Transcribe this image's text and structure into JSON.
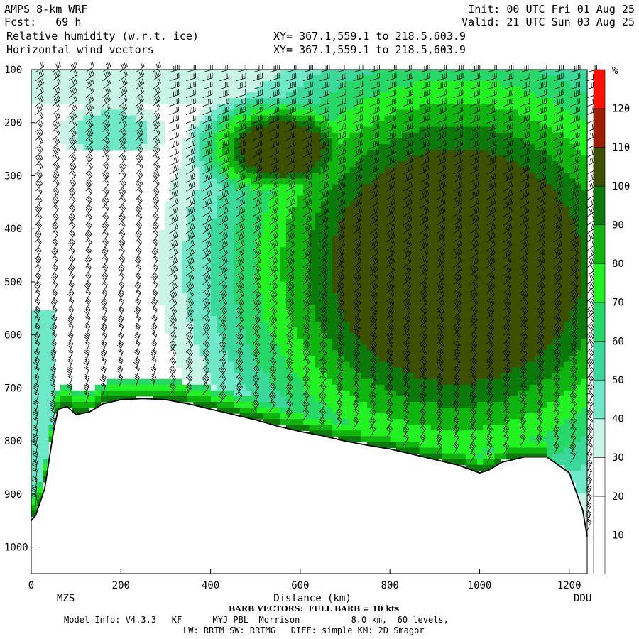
{
  "header": {
    "model": "AMPS 8-km WRF",
    "fcst": "Fcst:   69 h",
    "field1": "Relative humidity (w.r.t. ice)",
    "field2": "Horizontal wind vectors",
    "init": "Init: 00 UTC Fri 01 Aug 25",
    "valid": "Valid: 21 UTC Sun 03 Aug 25",
    "xy1": "XY= 367.1,559.1 to 218.5,603.9",
    "xy2": "XY= 367.1,559.1 to 218.5,603.9"
  },
  "footer": {
    "barb_note": "BARB VECTORS:  FULL BARB = 10 kts",
    "model_info": "Model Info: V4.3.3   KF      MYJ PBL  Morrison          8.0 km,  60 levels,",
    "physics": "LW: RRTM SW: RRTMG   DIFF: simple KM: 2D Smagor"
  },
  "chart_data": {
    "type": "heatmap",
    "title": "Relative humidity (w.r.t. ice)",
    "xlabel": "Distance (km)",
    "ylabel": "",
    "xlim": [
      0,
      1240
    ],
    "ylim": [
      1050,
      100
    ],
    "x_ticks": [
      0,
      200,
      400,
      600,
      800,
      1000,
      1200
    ],
    "y_ticks": [
      100,
      200,
      300,
      400,
      500,
      600,
      700,
      800,
      900,
      1000
    ],
    "endpoint_labels": {
      "left": "MZS",
      "right": "DDU"
    },
    "colorbar": {
      "unit": "%",
      "ticks": [
        10,
        20,
        30,
        40,
        50,
        60,
        70,
        80,
        90,
        100,
        110,
        120
      ],
      "bins": [
        {
          "lo": 0,
          "hi": 10,
          "color": "#ffffff"
        },
        {
          "lo": 10,
          "hi": 20,
          "color": "#ffffff"
        },
        {
          "lo": 20,
          "hi": 30,
          "color": "#ffffff"
        },
        {
          "lo": 30,
          "hi": 40,
          "color": "#c8f5e6"
        },
        {
          "lo": 40,
          "hi": 50,
          "color": "#6fe8c8"
        },
        {
          "lo": 50,
          "hi": 60,
          "color": "#3ad89a"
        },
        {
          "lo": 60,
          "hi": 70,
          "color": "#26d868"
        },
        {
          "lo": 70,
          "hi": 80,
          "color": "#22f222"
        },
        {
          "lo": 80,
          "hi": 90,
          "color": "#0fb40f"
        },
        {
          "lo": 90,
          "hi": 100,
          "color": "#0b7a0b"
        },
        {
          "lo": 100,
          "hi": 110,
          "color": "#3d5000"
        },
        {
          "lo": 110,
          "hi": 120,
          "color": "#a01e00"
        },
        {
          "lo": 120,
          "hi": 130,
          "color": "#ff1000"
        }
      ]
    },
    "terrain_profile": {
      "x_km": [
        0,
        10,
        30,
        50,
        60,
        80,
        100,
        130,
        160,
        200,
        250,
        300,
        350,
        400,
        450,
        500,
        550,
        600,
        650,
        700,
        750,
        800,
        850,
        900,
        950,
        1000,
        1020,
        1050,
        1100,
        1150,
        1200,
        1230,
        1240
      ],
      "p_hPa": [
        950,
        940,
        890,
        780,
        740,
        735,
        750,
        745,
        730,
        722,
        720,
        722,
        730,
        740,
        750,
        760,
        772,
        782,
        790,
        800,
        808,
        815,
        825,
        835,
        845,
        860,
        855,
        840,
        830,
        830,
        860,
        930,
        980
      ]
    }
  }
}
